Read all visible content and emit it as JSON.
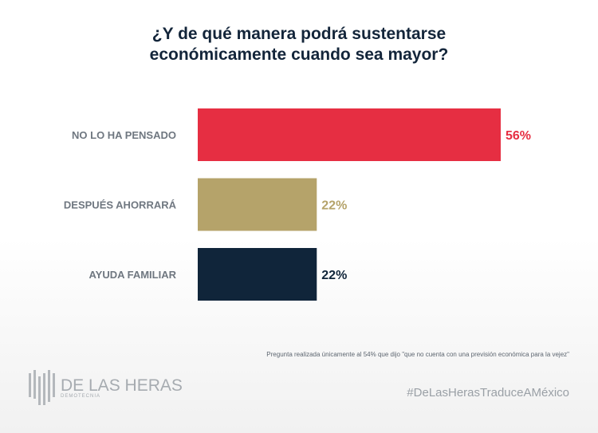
{
  "chart_data": {
    "type": "bar",
    "orientation": "horizontal",
    "title": "¿Y de qué manera podrá sustentarse económicamente cuando sea mayor?",
    "title_lines": [
      "¿Y de qué manera podrá sustentarse",
      "económicamente cuando sea mayor?"
    ],
    "categories": [
      "NO LO HA PENSADO",
      "DESPUÉS AHORRARÁ",
      "AYUDA FAMILIAR"
    ],
    "values": [
      56,
      22,
      22
    ],
    "value_labels": [
      "56%",
      "22%",
      "22%"
    ],
    "colors": [
      "#e62e42",
      "#b5a36a",
      "#10253a"
    ],
    "xlabel": "",
    "ylabel": ""
  },
  "footer": {
    "note": "Pregunta realizada únicamente al 54% que dijo \"que no cuenta con una previsión económica para la vejez\"",
    "hashtag": "#DeLasHerasTraduceAMéxico",
    "logo_name": "DE LAS HERAS",
    "logo_sub": "DEMOTECNIA"
  }
}
